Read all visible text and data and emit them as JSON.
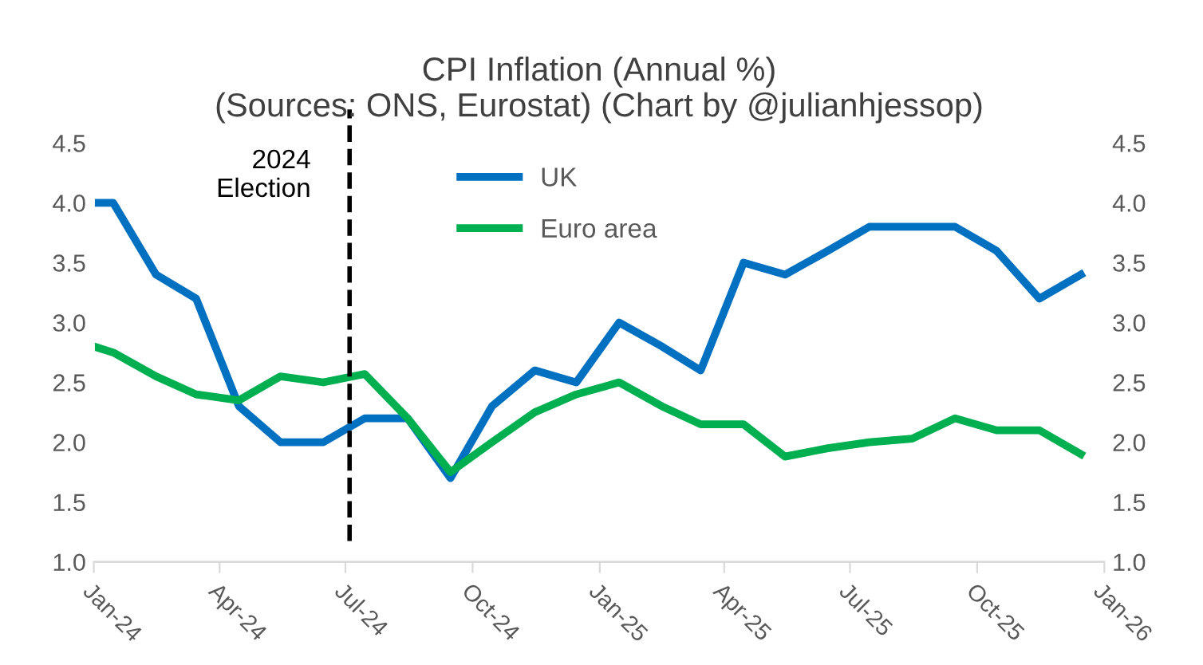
{
  "chart_data": {
    "type": "line",
    "title": "CPI Inflation (Annual %)\n(Sources: ONS, Eurostat) (Chart by @julianhjessop)",
    "x": [
      "2024-01-01",
      "2024-01-15",
      "2024-02-15",
      "2024-03-15",
      "2024-04-15",
      "2024-05-15",
      "2024-06-15",
      "2024-07-15",
      "2024-08-15",
      "2024-09-15",
      "2024-10-15",
      "2024-11-15",
      "2024-12-15",
      "2025-01-15",
      "2025-02-15",
      "2025-03-15",
      "2025-04-15",
      "2025-05-15",
      "2025-06-15",
      "2025-07-15",
      "2025-08-15",
      "2025-09-15",
      "2025-10-15",
      "2025-11-15",
      "2025-12-15"
    ],
    "series": [
      {
        "name": "UK",
        "color": "#0070c0",
        "values": [
          4.0,
          4.0,
          3.4,
          3.2,
          2.3,
          2.0,
          2.0,
          2.2,
          2.2,
          1.7,
          2.3,
          2.6,
          2.5,
          3.0,
          2.8,
          2.6,
          3.5,
          3.4,
          3.6,
          3.8,
          3.8,
          3.8,
          3.6,
          3.2,
          3.4
        ]
      },
      {
        "name": "Euro area",
        "color": "#00b050",
        "values": [
          2.8,
          2.75,
          2.55,
          2.4,
          2.35,
          2.55,
          2.5,
          2.57,
          2.2,
          1.75,
          2.0,
          2.25,
          2.4,
          2.5,
          2.3,
          2.15,
          2.15,
          1.88,
          1.95,
          2.0,
          2.03,
          2.2,
          2.1,
          2.1,
          1.9
        ]
      }
    ],
    "xlim": [
      "2024-01-01",
      "2026-01-01"
    ],
    "xticks": [
      {
        "value": "2024-01-01",
        "label": "Jan-24"
      },
      {
        "value": "2024-04-01",
        "label": "Apr-24"
      },
      {
        "value": "2024-07-01",
        "label": "Jul-24"
      },
      {
        "value": "2024-10-01",
        "label": "Oct-24"
      },
      {
        "value": "2025-01-01",
        "label": "Jan-25"
      },
      {
        "value": "2025-04-01",
        "label": "Apr-25"
      },
      {
        "value": "2025-07-01",
        "label": "Jul-25"
      },
      {
        "value": "2025-10-01",
        "label": "Oct-25"
      },
      {
        "value": "2026-01-01",
        "label": "Jan-26"
      }
    ],
    "ylim": [
      1.0,
      4.5
    ],
    "yticks": [
      {
        "value": 1.0,
        "label": "1.0"
      },
      {
        "value": 1.5,
        "label": "1.5"
      },
      {
        "value": 2.0,
        "label": "2.0"
      },
      {
        "value": 2.5,
        "label": "2.5"
      },
      {
        "value": 3.0,
        "label": "3.0"
      },
      {
        "value": 3.5,
        "label": "3.5"
      },
      {
        "value": 4.0,
        "label": "4.0"
      },
      {
        "value": 4.5,
        "label": "4.5"
      }
    ],
    "y2lim": [
      1.0,
      4.5
    ],
    "y2ticks": [
      {
        "value": 1.0,
        "label": "1.0"
      },
      {
        "value": 1.5,
        "label": "1.5"
      },
      {
        "value": 2.0,
        "label": "2.0"
      },
      {
        "value": 2.5,
        "label": "2.5"
      },
      {
        "value": 3.0,
        "label": "3.0"
      },
      {
        "value": 3.5,
        "label": "3.5"
      },
      {
        "value": 4.0,
        "label": "4.0"
      },
      {
        "value": 4.5,
        "label": "4.5"
      }
    ],
    "ref_lines": [
      {
        "axis": "x",
        "value": "2024-07-04",
        "label": "2024\nElection",
        "color": "#000000",
        "line_style": "dashed"
      }
    ],
    "legend": "top",
    "grid": false,
    "marker": "none",
    "line_style": "solid"
  }
}
